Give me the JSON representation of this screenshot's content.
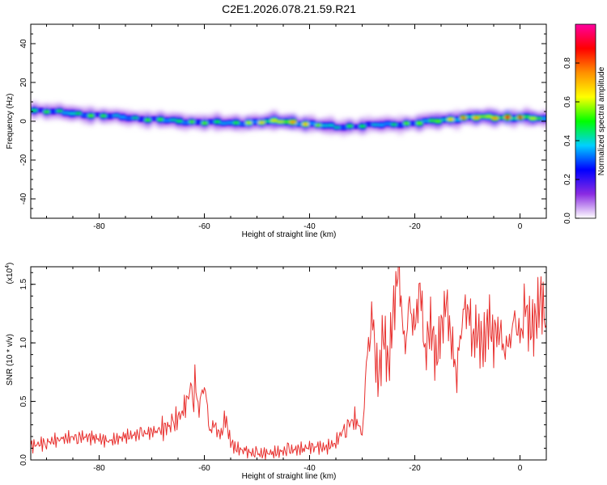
{
  "title": "C2E1.2026.078.21.59.R21",
  "chart_data": [
    {
      "type": "heatmap",
      "title": "",
      "xlabel": "Height of straight line (km)",
      "ylabel": "Frequency (Hz)",
      "xlim": [
        -93,
        5
      ],
      "ylim": [
        -50,
        50
      ],
      "xticks": [
        "-80",
        "-60",
        "-40",
        "-20",
        "0"
      ],
      "xtick_values": [
        -80,
        -60,
        -40,
        -20,
        0
      ],
      "yticks": [
        "40",
        "20",
        "0",
        "-20",
        "-40"
      ],
      "ytick_values": [
        40,
        20,
        0,
        -20,
        -40
      ],
      "colorbar": {
        "label": "Normalized spectral amplitude",
        "range": [
          0,
          1
        ],
        "ticks": [
          "0.0",
          "0.2",
          "0.4",
          "0.6",
          "0.8"
        ],
        "tick_values": [
          0,
          0.2,
          0.4,
          0.6,
          0.8
        ],
        "colors": [
          "#ffffff",
          "#8a2be2",
          "#0000ff",
          "#00d0ff",
          "#00ff00",
          "#ffff00",
          "#ff9000",
          "#ff0000",
          "#ff00a0"
        ]
      },
      "ridge": {
        "height_km": [
          -93,
          -85,
          -75,
          -65,
          -55,
          -45,
          -35,
          -28,
          -20,
          -10,
          0,
          5
        ],
        "frequency_hz": [
          6,
          4,
          2,
          0,
          -1,
          0,
          -3,
          -2,
          -1,
          2,
          2,
          1
        ],
        "amplitude": [
          0.5,
          0.6,
          0.5,
          0.6,
          0.55,
          0.9,
          0.55,
          0.5,
          0.6,
          0.85,
          0.95,
          0.6
        ]
      }
    },
    {
      "type": "line",
      "title": "",
      "xlabel": "Height of straight line (km)",
      "ylabel": "SNR (10 * v/v)",
      "scale_label": "(x10",
      "scale_exponent": "4",
      "scale_suffix": ")",
      "xlim": [
        -93,
        5
      ],
      "ylim": [
        0,
        1.65
      ],
      "xticks": [
        "-80",
        "-60",
        "-40",
        "-20",
        "0"
      ],
      "xtick_values": [
        -80,
        -60,
        -40,
        -20,
        0
      ],
      "yticks": [
        "0.0",
        "0.5",
        "1.0",
        "1.5"
      ],
      "ytick_values": [
        0,
        0.5,
        1.0,
        1.5
      ],
      "series": [
        {
          "name": "SNR",
          "color": "#e8302e",
          "x": [
            -93,
            -90,
            -87,
            -84,
            -81,
            -78,
            -75,
            -72,
            -69,
            -66,
            -64,
            -62,
            -61,
            -60,
            -59,
            -58,
            -57,
            -56,
            -55,
            -54,
            -52,
            -50,
            -47,
            -44,
            -41,
            -39,
            -37,
            -35,
            -33,
            -31,
            -30,
            -29,
            -28,
            -27,
            -26,
            -25,
            -24,
            -23,
            -22,
            -21,
            -20,
            -19,
            -18,
            -17,
            -16,
            -15,
            -14,
            -13,
            -12,
            -11,
            -10,
            -9,
            -8,
            -7,
            -6,
            -5,
            -4,
            -3,
            -2,
            -1,
            0,
            1,
            2,
            3,
            4,
            5
          ],
          "y": [
            0.12,
            0.15,
            0.18,
            0.2,
            0.19,
            0.16,
            0.2,
            0.22,
            0.25,
            0.3,
            0.42,
            0.68,
            0.45,
            0.7,
            0.25,
            0.3,
            0.2,
            0.35,
            0.15,
            0.1,
            0.07,
            0.05,
            0.06,
            0.08,
            0.1,
            0.12,
            0.1,
            0.15,
            0.3,
            0.35,
            0.2,
            0.9,
            1.2,
            0.6,
            1.1,
            0.8,
            1.3,
            1.65,
            0.9,
            1.3,
            1.1,
            1.5,
            0.9,
            1.2,
            0.85,
            1.1,
            1.35,
            1.0,
            0.75,
            1.25,
            1.35,
            1.05,
            1.1,
            0.95,
            1.2,
            1.05,
            1.15,
            0.95,
            1.0,
            1.2,
            1.0,
            1.3,
            1.1,
            1.2,
            1.4,
            1.15
          ]
        }
      ]
    }
  ]
}
